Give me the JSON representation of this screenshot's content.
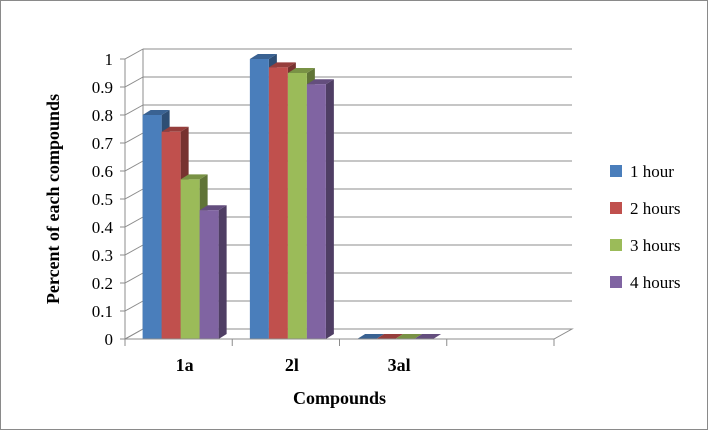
{
  "chart_data": {
    "type": "bar",
    "title": "",
    "xlabel": "Compounds",
    "ylabel": "Percent of each compounds",
    "categories": [
      "1a",
      "2l",
      "3al"
    ],
    "series": [
      {
        "name": "1 hour",
        "values": [
          0.8,
          1.0,
          0.0
        ],
        "color": "#4a7ebb"
      },
      {
        "name": "2 hours",
        "values": [
          0.74,
          0.97,
          0.0
        ],
        "color": "#c0504d"
      },
      {
        "name": "3 hours",
        "values": [
          0.57,
          0.95,
          0.0
        ],
        "color": "#9bbb59"
      },
      {
        "name": "4 hours",
        "values": [
          0.46,
          0.91,
          0.0
        ],
        "color": "#8064a2"
      }
    ],
    "yticks": [
      "0",
      "0.1",
      "0.2",
      "0.3",
      "0.4",
      "0.5",
      "0.6",
      "0.7",
      "0.8",
      "0.9",
      "1"
    ],
    "ylim": [
      0,
      1
    ],
    "grid": true,
    "legend": "right",
    "style": "3d-clustered-column"
  }
}
